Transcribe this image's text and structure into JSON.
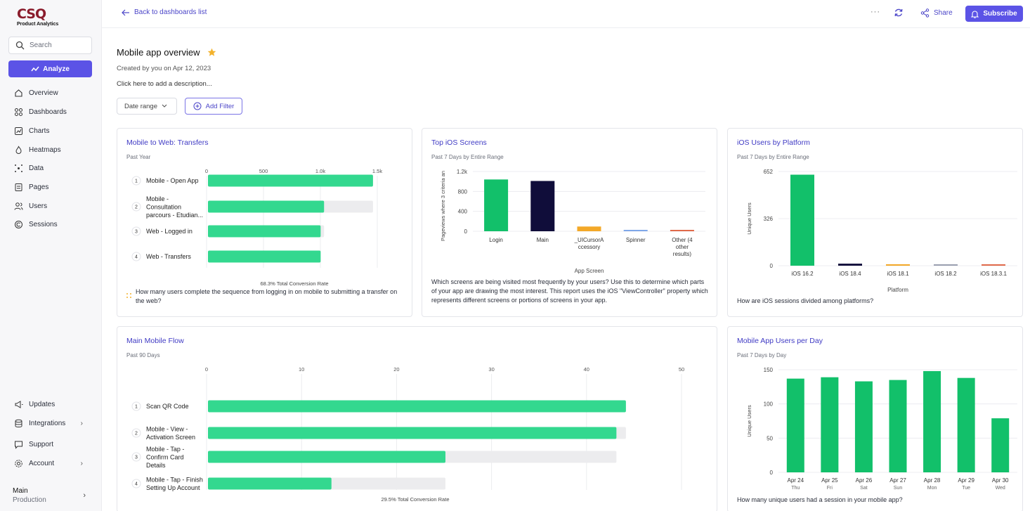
{
  "brand": {
    "logo_text": "CSQ",
    "subtitle": "Product Analytics"
  },
  "sidebar": {
    "search_placeholder": "Search",
    "analyze_label": "Analyze",
    "nav": [
      "Overview",
      "Dashboards",
      "Charts",
      "Heatmaps",
      "Data",
      "Pages",
      "Users",
      "Sessions"
    ],
    "bottom": [
      "Updates",
      "Integrations",
      "Support",
      "Account"
    ],
    "env_name": "Main",
    "env_sub": "Production"
  },
  "topbar": {
    "back_label": "Back to dashboards list",
    "more_label": "···",
    "share_label": "Share",
    "subscribe_label": "Subscribe"
  },
  "dashboard": {
    "title": "Mobile app overview",
    "created": "Created by you on Apr 12, 2023",
    "description_prompt": "Click here to add a description...",
    "date_range_label": "Date range",
    "add_filter_label": "Add Filter"
  },
  "colors": {
    "accent": "#5b53e6",
    "bar_green": "#33d88f",
    "bar_dark_green": "#12c06a",
    "navy": "#100d3a",
    "orange": "#f3a828"
  },
  "cards": {
    "transfers": {
      "title": "Mobile to Web: Transfers",
      "subtitle": "Past Year",
      "footer": "How many users complete the sequence from logging in on mobile to submitting a transfer on the web?"
    },
    "ios_screens": {
      "title": "Top iOS Screens",
      "subtitle": "Past 7 Days by Entire Range",
      "footer": "Which screens are being visited most frequently by your users? Use this to determine which parts of your app are drawing the most interest. This report uses the iOS \"ViewController\" property which represents different screens or portions of screens in your app."
    },
    "ios_platform": {
      "title": "iOS Users by Platform",
      "subtitle": "Past 7 Days by Entire Range",
      "footer": "How are iOS sessions divided among platforms?"
    },
    "main_flow": {
      "title": "Main Mobile Flow",
      "subtitle": "Past 90 Days"
    },
    "users_per_day": {
      "title": "Mobile App Users per Day",
      "subtitle": "Past 7 Days by Day",
      "footer": "How many unique users had a session in your mobile app?"
    }
  },
  "chart_data": [
    {
      "id": "transfers",
      "type": "bar",
      "orientation": "horizontal",
      "categories": [
        [
          "Mobile - Open App"
        ],
        [
          "Mobile -",
          "Consultation",
          "parcours - Etudian..."
        ],
        [
          "Web - Logged in"
        ],
        [
          "Web - Transfers"
        ]
      ],
      "values": [
        1450,
        1020,
        990,
        990
      ],
      "xticks": [
        "0",
        "500",
        "1.0k",
        "1.5k"
      ],
      "xlim": [
        0,
        1500
      ],
      "caption": "68.3% Total Conversion Rate"
    },
    {
      "id": "ios_screens",
      "type": "bar",
      "categories": [
        [
          "Login"
        ],
        [
          "Main"
        ],
        [
          "_UICursorA",
          "ccessory"
        ],
        [
          "Spinner"
        ],
        [
          "Other (4",
          "other",
          "results)"
        ]
      ],
      "values": [
        1040,
        1010,
        95,
        10,
        20
      ],
      "colors": [
        "#12c06a",
        "#100d3a",
        "#f3a828",
        "#7fa7e8",
        "#e06a4a"
      ],
      "yticks": [
        "1.2k",
        "800",
        "400",
        "0"
      ],
      "ylim": [
        0,
        1200
      ],
      "ylabel": "Pageviews where 3 criteria an",
      "xlabel": "App Screen"
    },
    {
      "id": "ios_platform",
      "type": "bar",
      "categories": [
        "iOS 16.2",
        "iOS 18.4",
        "iOS 18.1",
        "iOS 18.2",
        "iOS 18.3.1"
      ],
      "values": [
        630,
        14,
        3,
        2,
        2
      ],
      "colors": [
        "#12c06a",
        "#100d3a",
        "#f3a828",
        "#9aa0b0",
        "#e06a4a"
      ],
      "yticks": [
        "652",
        "326",
        "0"
      ],
      "ylim": [
        0,
        652
      ],
      "ylabel": "Unique Users",
      "xlabel": "Platform"
    },
    {
      "id": "main_flow",
      "type": "bar",
      "orientation": "horizontal",
      "categories": [
        [
          "Scan QR Code"
        ],
        [
          "Mobile - View -",
          "Activation Screen"
        ],
        [
          "Mobile - Tap -",
          "Confirm Card",
          "Details"
        ],
        [
          "Mobile - Tap - Finish",
          "Setting Up Account"
        ]
      ],
      "values": [
        44,
        43,
        25,
        13
      ],
      "xticks": [
        "0",
        "10",
        "20",
        "30",
        "40",
        "50"
      ],
      "xlim": [
        0,
        50
      ],
      "caption": "29.5% Total Conversion Rate"
    },
    {
      "id": "users_per_day",
      "type": "bar",
      "categories": [
        [
          "Apr 24",
          "Thu"
        ],
        [
          "Apr 25",
          "Fri"
        ],
        [
          "Apr 26",
          "Sat"
        ],
        [
          "Apr 27",
          "Sun"
        ],
        [
          "Apr 28",
          "Mon"
        ],
        [
          "Apr 29",
          "Tue"
        ],
        [
          "Apr 30",
          "Wed"
        ]
      ],
      "values": [
        137,
        139,
        133,
        135,
        148,
        138,
        79
      ],
      "yticks": [
        "150",
        "100",
        "50",
        "0"
      ],
      "ylim": [
        0,
        150
      ],
      "ylabel": "Unique Users"
    }
  ]
}
